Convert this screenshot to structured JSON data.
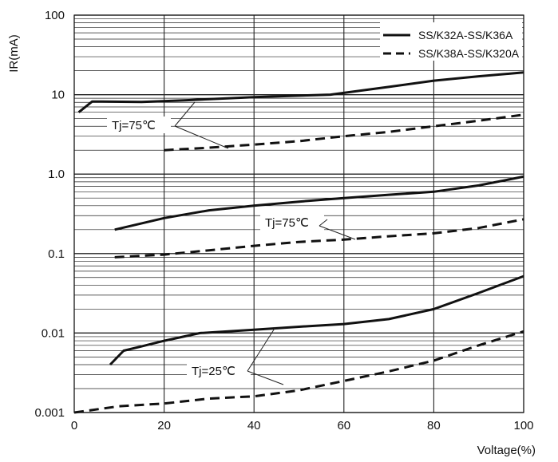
{
  "chart_data": {
    "type": "line",
    "xlabel": "Voltage(%)",
    "ylabel": "IR(mA)",
    "xlim": [
      0,
      100
    ],
    "ylim": [
      0.001,
      100
    ],
    "y_scale": "log",
    "grid": true,
    "legend_position": "top-right",
    "x_ticks": [
      "0",
      "20",
      "40",
      "60",
      "80",
      "100"
    ],
    "y_ticks": [
      "100",
      "10",
      "1.0",
      "0.1",
      "0.01",
      "0.001"
    ],
    "series": [
      {
        "group": "SS/K32A-SS/K36A",
        "style": "solid",
        "x": [
          1,
          4,
          15,
          25,
          40,
          57,
          70,
          80,
          90,
          100
        ],
        "y": [
          6,
          8.2,
          8.1,
          8.5,
          9.3,
          10,
          12.5,
          15,
          17,
          19
        ]
      },
      {
        "group": "SS/K38A-SS/K320A",
        "style": "dashed",
        "x": [
          20,
          30,
          40,
          50,
          60,
          70,
          80,
          90,
          100
        ],
        "y": [
          2,
          2.15,
          2.35,
          2.6,
          3,
          3.4,
          4,
          4.7,
          5.6
        ]
      },
      {
        "group": "SS/K32A-SS/K36A",
        "style": "solid",
        "x": [
          9,
          15,
          20,
          30,
          40,
          50,
          60,
          70,
          80,
          90,
          100
        ],
        "y": [
          0.2,
          0.24,
          0.28,
          0.35,
          0.4,
          0.45,
          0.5,
          0.55,
          0.6,
          0.72,
          0.93
        ]
      },
      {
        "group": "SS/K38A-SS/K320A",
        "style": "dashed",
        "x": [
          9,
          20,
          30,
          40,
          50,
          60,
          70,
          80,
          90,
          100
        ],
        "y": [
          0.09,
          0.097,
          0.11,
          0.125,
          0.14,
          0.15,
          0.165,
          0.18,
          0.21,
          0.27
        ]
      },
      {
        "group": "SS/K32A-SS/K36A",
        "style": "solid",
        "x": [
          8,
          11,
          15,
          20,
          28,
          40,
          50,
          60,
          70,
          80,
          90,
          100
        ],
        "y": [
          0.004,
          0.006,
          0.0068,
          0.008,
          0.01,
          0.011,
          0.012,
          0.013,
          0.015,
          0.02,
          0.032,
          0.052
        ]
      },
      {
        "group": "SS/K38A-SS/K320A",
        "style": "dashed",
        "x": [
          0,
          10,
          20,
          30,
          40,
          50,
          60,
          70,
          80,
          90,
          100
        ],
        "y": [
          0.001,
          0.0012,
          0.0013,
          0.0015,
          0.0016,
          0.0019,
          0.0025,
          0.0033,
          0.0045,
          0.007,
          0.0105
        ]
      }
    ],
    "legend": [
      {
        "label": "SS/K32A-SS/K36A",
        "style": "solid"
      },
      {
        "label": "SS/K38A-SS/K320A",
        "style": "dashed"
      }
    ],
    "annotations": [
      {
        "label": "Tj=75℃"
      },
      {
        "label": "Tj=75℃"
      },
      {
        "label": "Tj=25℃"
      }
    ]
  }
}
